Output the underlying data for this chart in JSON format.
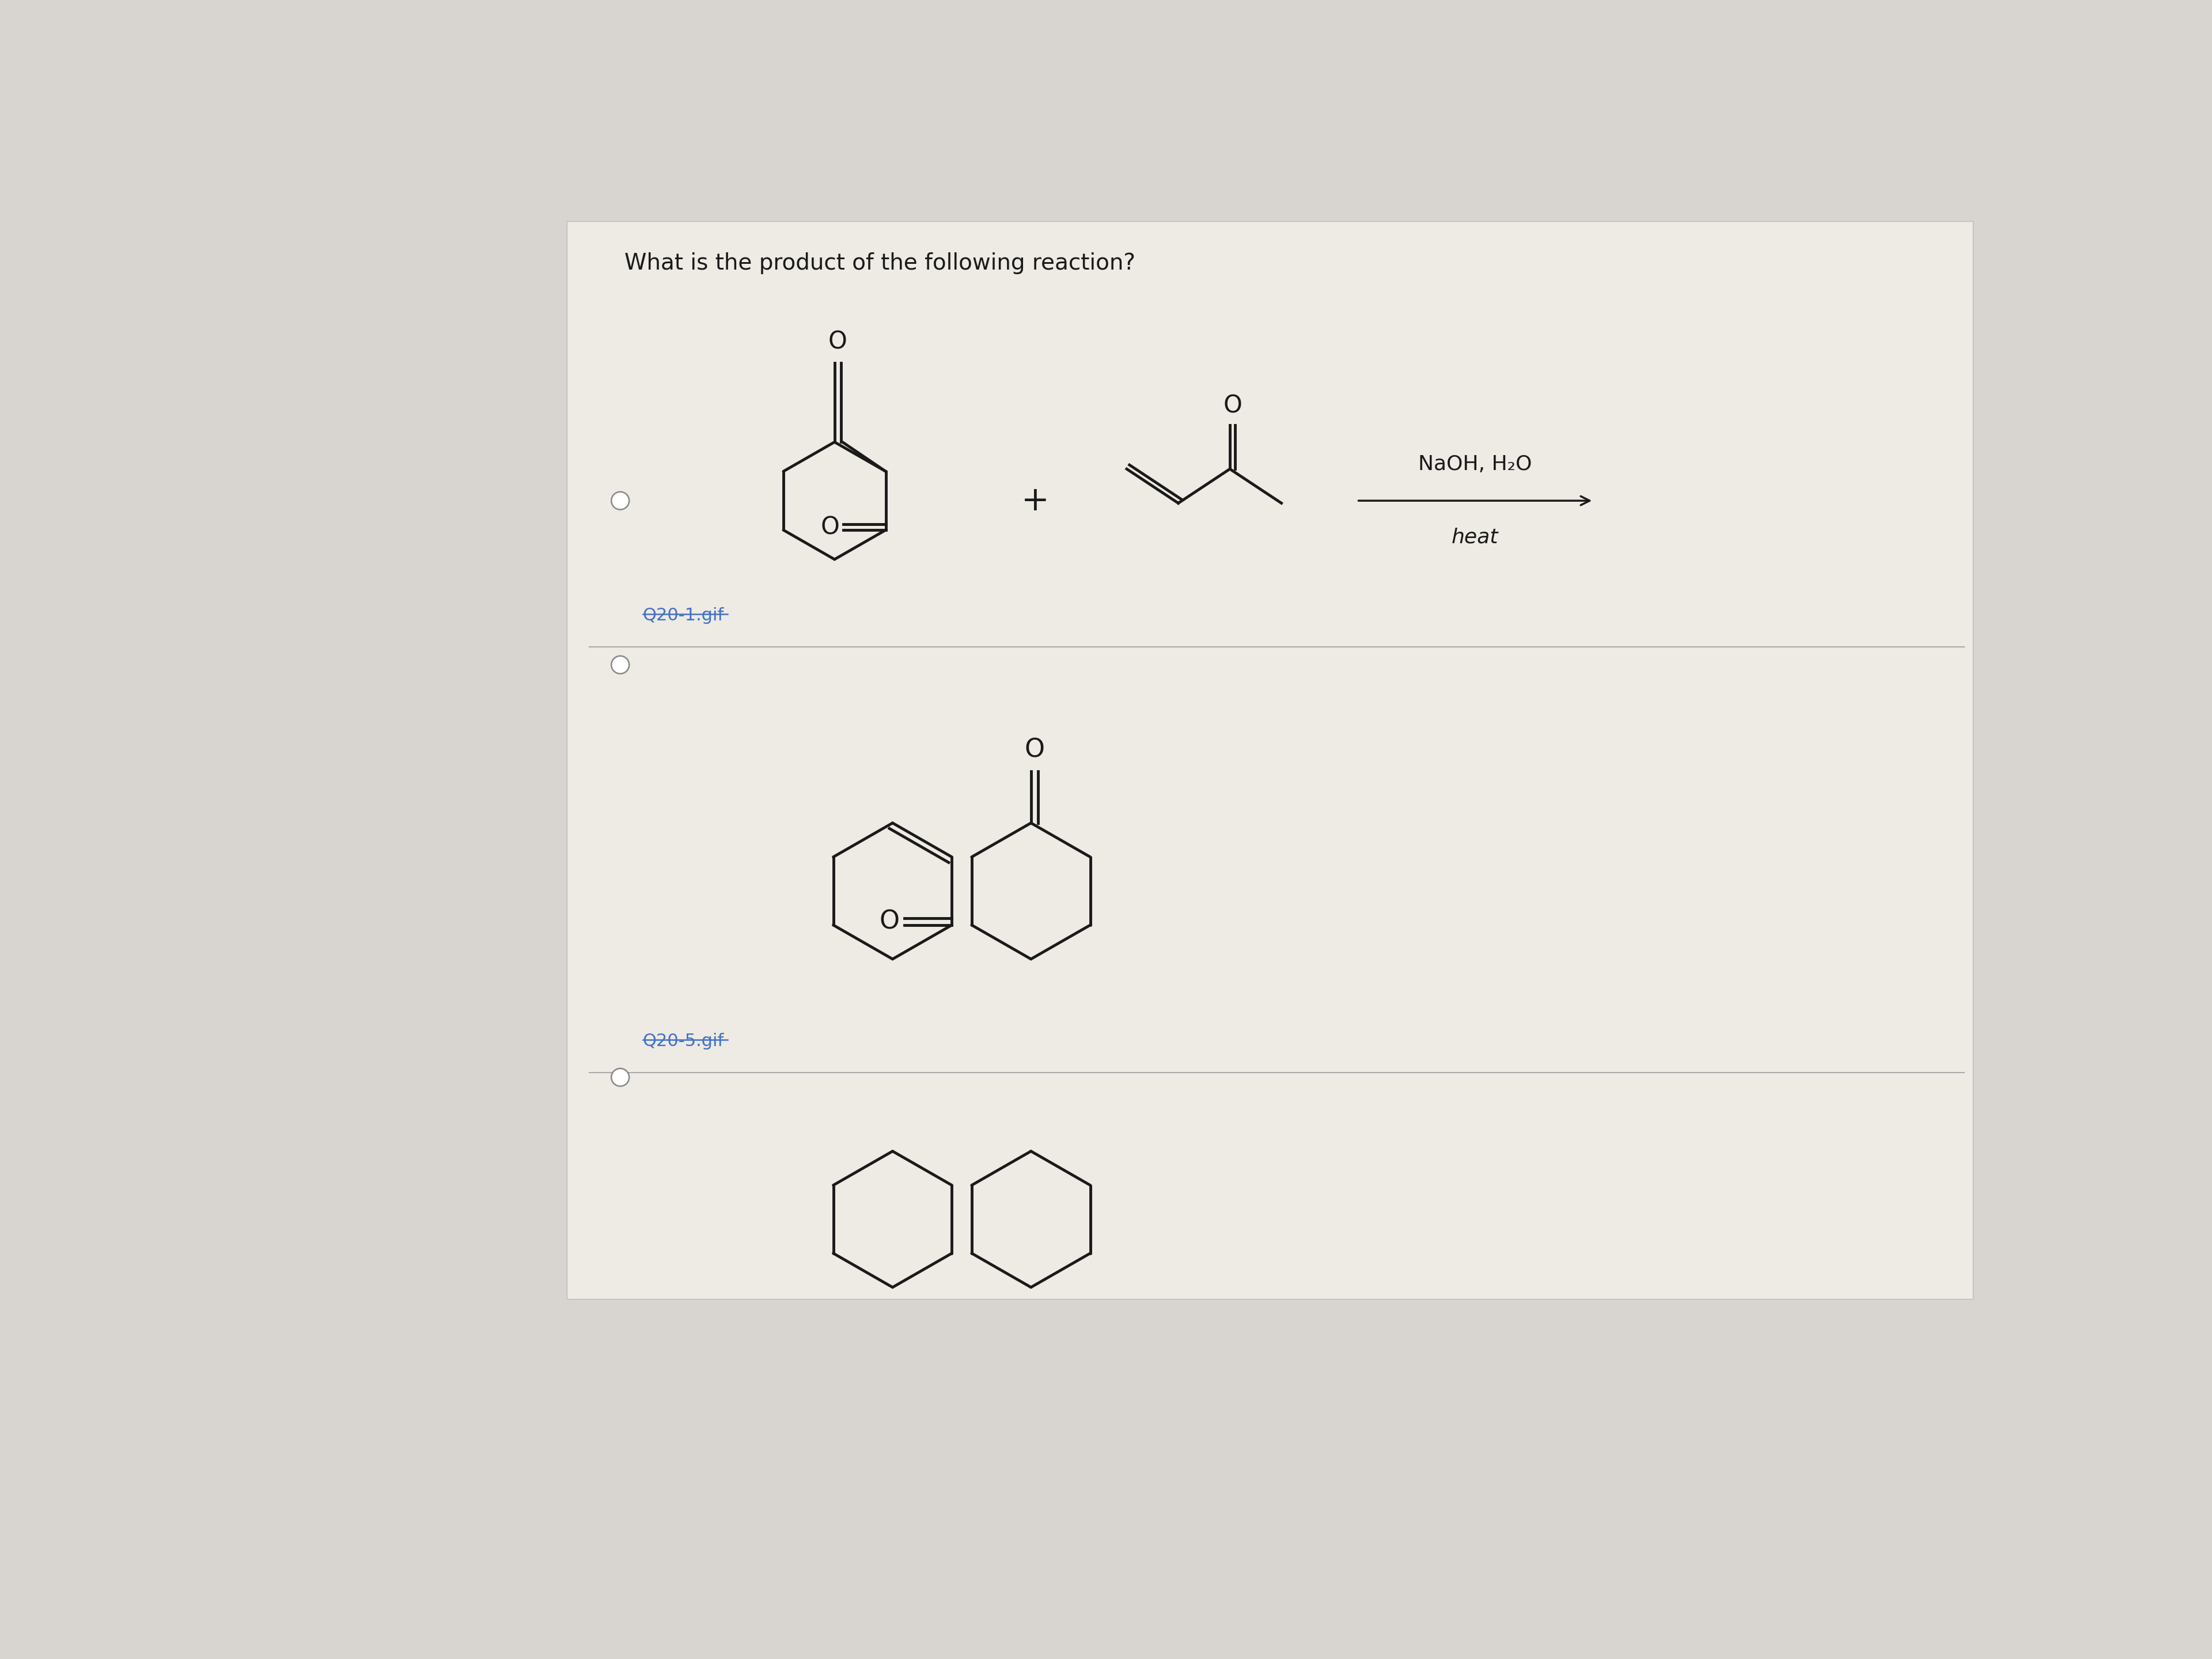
{
  "title": "What is the product of the following reaction?",
  "reagent_line1": "NaOH, H₂O",
  "reagent_line2": "heat",
  "link1": "Q20-1.gif",
  "link2": "Q20-5.gif",
  "bg_color": "#d8d4cf",
  "panel_bg": "#eeeae4",
  "text_color": "#1a1a1a",
  "link_color": "#4472C4",
  "title_fontsize": 28,
  "reagent_fontsize": 26,
  "mol_lw": 3.5,
  "plus_fontsize": 42,
  "o_fontsize": 30
}
